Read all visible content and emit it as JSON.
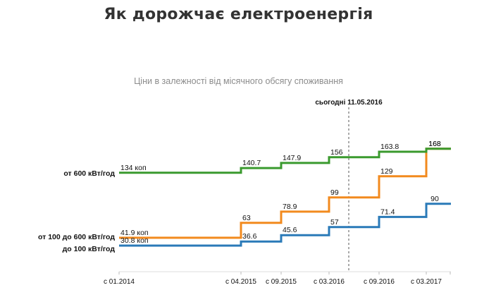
{
  "chart_data": {
    "type": "line",
    "title": "Як дорожчає електроенергія",
    "subtitle": "Ціни в залежності від місячного обсягу споживання",
    "today_label": "сьогодні 11.05.2016",
    "x_ticks": [
      "с 01.2014",
      "с 04.2015",
      "с 09.2015",
      "с 03.2016",
      "с 09.2016",
      "с 03.2017"
    ],
    "series": [
      {
        "name": "от 600 кВт/год",
        "color": "#3a9a2e",
        "values": [
          134,
          140.7,
          147.9,
          156,
          163.8,
          168
        ],
        "labels": [
          "134 коп",
          "140.7",
          "147.9",
          "156",
          "163.8",
          "168"
        ]
      },
      {
        "name": "от 100 до 600 кВт/год",
        "color": "#f28a1e",
        "values": [
          41.9,
          63,
          78.9,
          99,
          129,
          168
        ],
        "labels": [
          "41.9 коп",
          "63",
          "78.9",
          "99",
          "129",
          "168"
        ]
      },
      {
        "name": "до 100 кВт/год",
        "color": "#2a7ab8",
        "values": [
          30.8,
          36.6,
          45.6,
          57,
          71.4,
          90
        ],
        "labels": [
          "30.8 коп",
          "36.6",
          "45.6",
          "57",
          "71.4",
          "90"
        ]
      }
    ]
  }
}
